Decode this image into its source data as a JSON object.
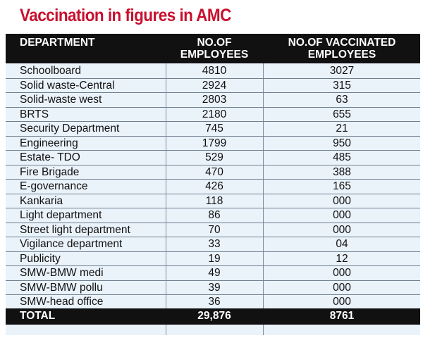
{
  "title": "Vaccination in figures in AMC",
  "colors": {
    "title": "#c8102e",
    "header_bg": "#111111",
    "row_bg": "#eaf2fa"
  },
  "table": {
    "headers": {
      "department": "DEPARTMENT",
      "employees": "NO.OF\nEMPLOYEES",
      "vaccinated": "NO.OF VACCINATED\nEMPLOYEES"
    },
    "rows": [
      {
        "department": "Schoolboard",
        "employees": "4810",
        "vaccinated": "3027"
      },
      {
        "department": "Solid waste-Central",
        "employees": "2924",
        "vaccinated": "315"
      },
      {
        "department": "Solid-waste west",
        "employees": "2803",
        "vaccinated": "63"
      },
      {
        "department": "BRTS",
        "employees": "2180",
        "vaccinated": "655"
      },
      {
        "department": "Security Department",
        "employees": "745",
        "vaccinated": "21"
      },
      {
        "department": "Engineering",
        "employees": "1799",
        "vaccinated": "950"
      },
      {
        "department": "Estate- TDO",
        "employees": "529",
        "vaccinated": "485"
      },
      {
        "department": "Fire Brigade",
        "employees": "470",
        "vaccinated": "388"
      },
      {
        "department": "E-governance",
        "employees": "426",
        "vaccinated": "165"
      },
      {
        "department": "Kankaria",
        "employees": "118",
        "vaccinated": "000"
      },
      {
        "department": "Light department",
        "employees": "86",
        "vaccinated": "000"
      },
      {
        "department": "Street light department",
        "employees": "70",
        "vaccinated": "000"
      },
      {
        "department": "Vigilance department",
        "employees": "33",
        "vaccinated": "04"
      },
      {
        "department": "Publicity",
        "employees": "19",
        "vaccinated": "12"
      },
      {
        "department": "SMW-BMW medi",
        "employees": "49",
        "vaccinated": "000"
      },
      {
        "department": "SMW-BMW pollu",
        "employees": "39",
        "vaccinated": "000"
      },
      {
        "department": "SMW-head office",
        "employees": "36",
        "vaccinated": "000"
      }
    ],
    "total": {
      "department": "TOTAL",
      "employees": "29,876",
      "vaccinated": "8761"
    }
  }
}
